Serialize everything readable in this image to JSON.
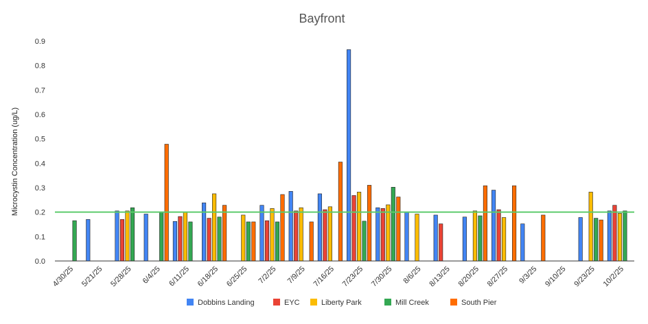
{
  "chart_data": {
    "type": "bar",
    "title": "Bayfront",
    "xlabel": "",
    "ylabel": "Microcystin Concentration (ug/L)",
    "ylim": [
      0,
      0.9
    ],
    "yticks": [
      "0.0",
      "0.1",
      "0.2",
      "0.3",
      "0.4",
      "0.5",
      "0.6",
      "0.7",
      "0.8",
      "0.9"
    ],
    "grid": false,
    "legend_position": "bottom",
    "categories": [
      "4/30/25",
      "5/21/25",
      "5/28/25",
      "6/4/25",
      "6/11/25",
      "6/18/25",
      "6/25/25",
      "7/2/25",
      "7/9/25",
      "7/16/25",
      "7/23/25",
      "7/30/25",
      "8/6/25",
      "8/13/25",
      "8/20/25",
      "8/27/25",
      "9/3/25",
      "9/10/25",
      "9/23/25",
      "10/2/25"
    ],
    "series": [
      {
        "name": "Dobbins Landing",
        "color": "#4285F4",
        "values": [
          null,
          0.17,
          0.205,
          0.192,
          0.162,
          0.238,
          null,
          0.228,
          0.285,
          0.275,
          0.865,
          0.218,
          0.2,
          0.188,
          0.18,
          0.29,
          0.152,
          null,
          0.178,
          0.205
        ]
      },
      {
        "name": "EYC",
        "color": "#EA4335",
        "values": [
          null,
          null,
          0.17,
          null,
          0.182,
          0.175,
          null,
          0.165,
          0.205,
          0.21,
          0.268,
          0.215,
          null,
          0.152,
          null,
          0.21,
          null,
          null,
          null,
          0.228
        ]
      },
      {
        "name": "Liberty Park",
        "color": "#FBBC04",
        "values": [
          null,
          null,
          0.205,
          null,
          0.2,
          0.275,
          0.188,
          0.215,
          0.218,
          0.222,
          0.282,
          0.23,
          0.192,
          null,
          0.205,
          0.178,
          null,
          null,
          0.282,
          0.195
        ]
      },
      {
        "name": "Mill Creek",
        "color": "#34A853",
        "values": [
          0.165,
          null,
          0.218,
          0.2,
          0.16,
          0.18,
          0.16,
          0.16,
          null,
          null,
          0.163,
          0.302,
          null,
          null,
          0.185,
          null,
          null,
          null,
          0.175,
          0.205
        ]
      },
      {
        "name": "South Pier",
        "color": "#FF6D01",
        "values": [
          null,
          null,
          null,
          0.478,
          null,
          0.228,
          0.16,
          0.272,
          0.16,
          0.405,
          0.31,
          0.262,
          null,
          null,
          0.308,
          0.308,
          0.188,
          null,
          0.168,
          null
        ]
      }
    ],
    "reference_line": {
      "value": 0.2,
      "color": "#5CCB6B"
    }
  }
}
